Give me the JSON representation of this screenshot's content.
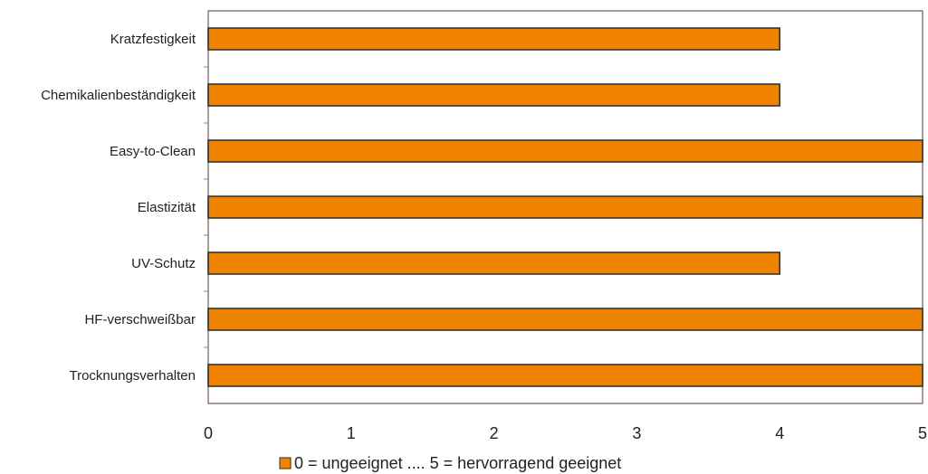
{
  "chart_data": {
    "type": "bar",
    "orientation": "horizontal",
    "categories": [
      "Kratzfestigkeit",
      "Chemikalienbeständigkeit",
      "Easy-to-Clean",
      "Elastizität",
      "UV-Schutz",
      "HF-verschweißbar",
      "Trocknungsverhalten"
    ],
    "series": [
      {
        "name": "0 = ungeeignet .... 5 = hervorragend geeignet",
        "values": [
          4,
          4,
          5,
          5,
          4,
          5,
          5
        ],
        "color": "#f08400"
      }
    ],
    "xlim": [
      0,
      5
    ],
    "xticks": [
      "0",
      "1",
      "2",
      "3",
      "4",
      "5"
    ],
    "grid": false,
    "legend_position": "bottom",
    "frame_color": "#8c7b72"
  }
}
